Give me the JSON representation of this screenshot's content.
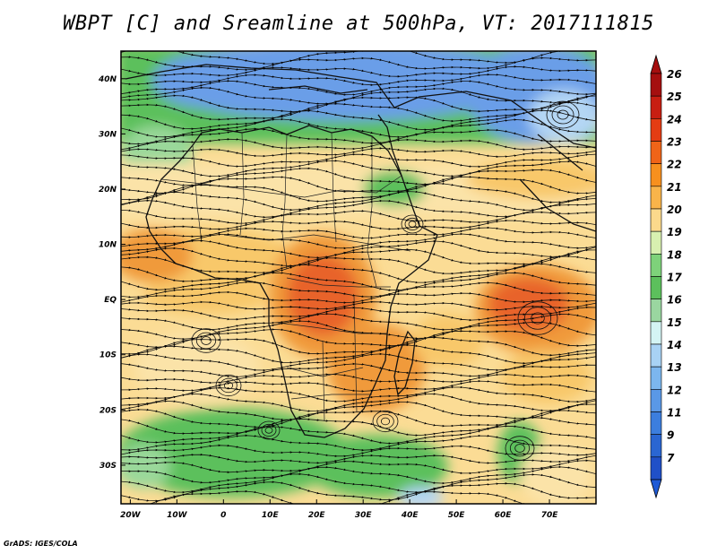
{
  "title": "WBPT [C] and Sreamline at 500hPa, VT: 2017111815",
  "credit": "GrADS: IGES/COLA",
  "map": {
    "lon_range": [
      -22,
      80
    ],
    "lat_range": [
      -37,
      45
    ],
    "lat_ticks": [
      {
        "value": 40,
        "label": "40N"
      },
      {
        "value": 30,
        "label": "30N"
      },
      {
        "value": 20,
        "label": "20N"
      },
      {
        "value": 10,
        "label": "10N"
      },
      {
        "value": 0,
        "label": "EQ"
      },
      {
        "value": -10,
        "label": "10S"
      },
      {
        "value": -20,
        "label": "20S"
      },
      {
        "value": -30,
        "label": "30S"
      }
    ],
    "lon_ticks": [
      {
        "value": -20,
        "label": "20W"
      },
      {
        "value": -10,
        "label": "10W"
      },
      {
        "value": 0,
        "label": "0"
      },
      {
        "value": 10,
        "label": "10E"
      },
      {
        "value": 20,
        "label": "20E"
      },
      {
        "value": 30,
        "label": "30E"
      },
      {
        "value": 40,
        "label": "40E"
      },
      {
        "value": 50,
        "label": "50E"
      },
      {
        "value": 60,
        "label": "60E"
      },
      {
        "value": 70,
        "label": "70E"
      }
    ]
  },
  "colorbar": {
    "levels": [
      "26",
      "25",
      "24",
      "23",
      "22",
      "21",
      "20",
      "19",
      "18",
      "17",
      "16",
      "15",
      "14",
      "13",
      "12",
      "11",
      "9",
      "7"
    ],
    "colors": [
      "#a50f0f",
      "#c81e12",
      "#e43c14",
      "#f06418",
      "#f7901e",
      "#f9b44a",
      "#fbd98c",
      "#d8f0b0",
      "#7ed27a",
      "#5cc05c",
      "#9ad6a0",
      "#d4f4f4",
      "#a8d2f4",
      "#7cb6ee",
      "#5a98e6",
      "#3c7ede",
      "#2a66d2",
      "#2050c8"
    ],
    "top_arrow_color": "#a50f0f",
    "bottom_arrow_color": "#1e5ad6"
  },
  "field_colors": {
    "cold": "#6a9ee8",
    "cool": "#b4d6f4",
    "mid_green": "#5cc05c",
    "light_green": "#9ad89a",
    "pale": "#fbe3a8",
    "yellow": "#f8c86a",
    "orange": "#f09a3a",
    "hot": "#e8642a"
  }
}
